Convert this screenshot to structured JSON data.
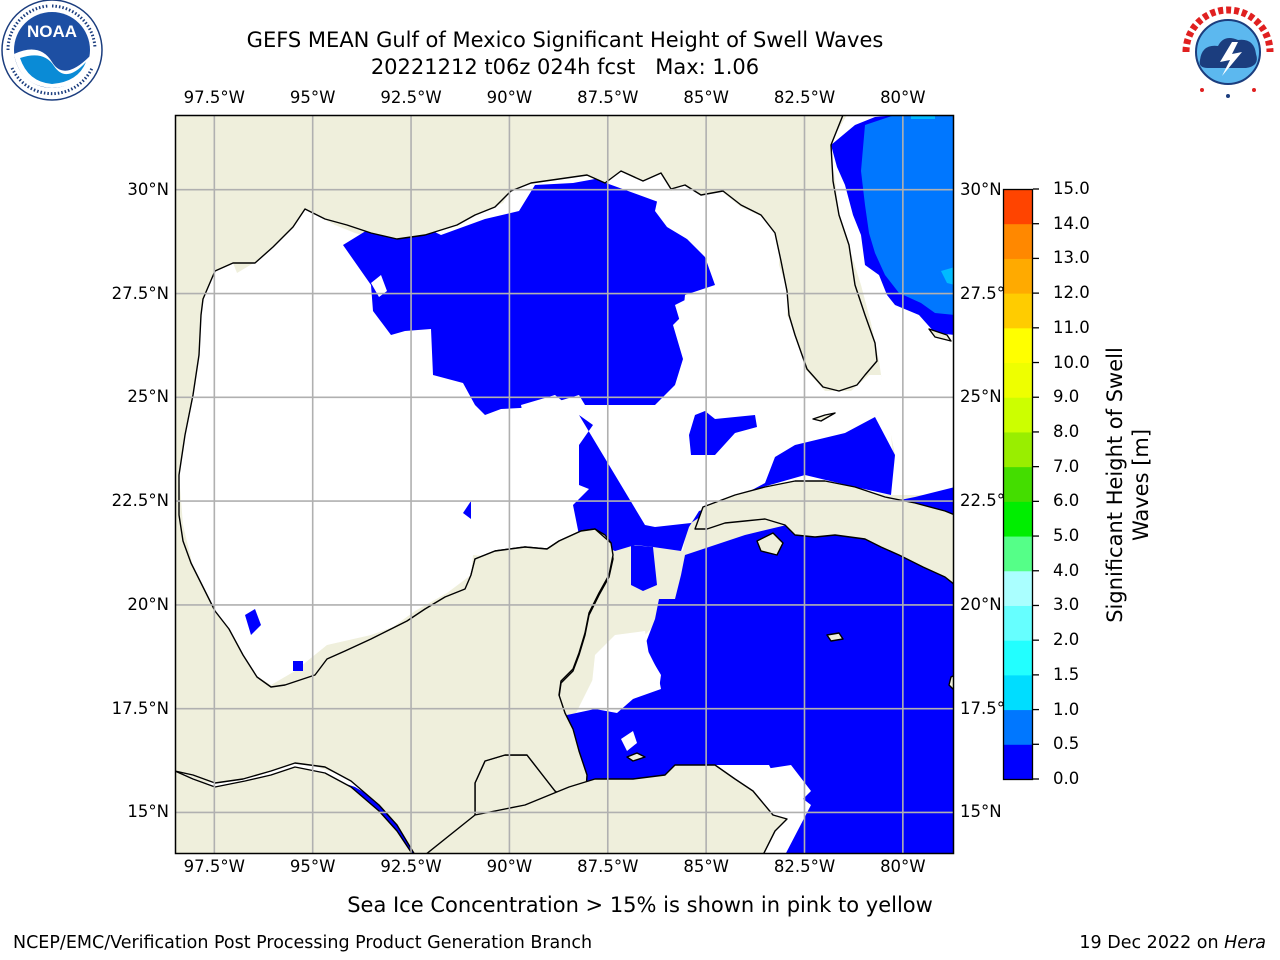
{
  "title": {
    "line1": "GEFS MEAN Gulf of Mexico Significant Height of Swell Waves",
    "line2": "20221212 t06z 024h fcst   Max: 1.06"
  },
  "logos": {
    "left": {
      "icon": "noaa-logo-icon",
      "text": "NOAA",
      "ring": "NATIONAL OCEANIC AND ATMOSPHERIC ADMINISTRATION · U.S. DEPARTMENT OF COMMERCE"
    },
    "right": {
      "icon": "nws-logo-icon",
      "ring": "NATIONAL WEATHER SERVICE"
    }
  },
  "map": {
    "lon_range": [
      -98.5,
      -78.7
    ],
    "lat_range": [
      14.0,
      31.8
    ],
    "colors": {
      "land": "#efefdc",
      "water_zero": "#ffffff",
      "swell_low": "#0000ff",
      "swell_mid": "#0077ff",
      "swell_high": "#00bbff",
      "coast": "#000000",
      "grid": "#b0b0b0"
    },
    "lon_ticks": [
      {
        "value": -97.5,
        "label": "97.5°W"
      },
      {
        "value": -95.0,
        "label": "95°W"
      },
      {
        "value": -92.5,
        "label": "92.5°W"
      },
      {
        "value": -90.0,
        "label": "90°W"
      },
      {
        "value": -87.5,
        "label": "87.5°W"
      },
      {
        "value": -85.0,
        "label": "85°W"
      },
      {
        "value": -82.5,
        "label": "82.5°W"
      },
      {
        "value": -80.0,
        "label": "80°W"
      }
    ],
    "lat_ticks": [
      {
        "value": 30.0,
        "label": "30°N"
      },
      {
        "value": 27.5,
        "label": "27.5°N"
      },
      {
        "value": 25.0,
        "label": "25°N"
      },
      {
        "value": 22.5,
        "label": "22.5°N"
      },
      {
        "value": 20.0,
        "label": "20°N"
      },
      {
        "value": 17.5,
        "label": "17.5°N"
      },
      {
        "value": 15.0,
        "label": "15°N"
      }
    ]
  },
  "colorbar": {
    "label_line1": "Significant Height of Swell",
    "label_line2": "Waves [m]",
    "ticks": [
      "0.0",
      "0.5",
      "1.0",
      "1.5",
      "2.0",
      "3.0",
      "4.0",
      "5.0",
      "6.0",
      "7.0",
      "8.0",
      "9.0",
      "10.0",
      "11.0",
      "12.0",
      "13.0",
      "14.0",
      "15.0"
    ],
    "colors": [
      "#0000ff",
      "#0077ff",
      "#00ddff",
      "#22ffff",
      "#66ffff",
      "#aaffff",
      "#55ff88",
      "#00ee00",
      "#44dd00",
      "#99ee00",
      "#ccff00",
      "#eeff00",
      "#ffff00",
      "#ffcc00",
      "#ffaa00",
      "#ff8800",
      "#ff4400",
      "#ff1100"
    ]
  },
  "caption": "Sea Ice Concentration > 15% is shown in pink to yellow",
  "credit_left": "NCEP/EMC/Verification Post Processing Product Generation Branch",
  "credit_right": {
    "date": "19 Dec 2022 on ",
    "host": "Hera"
  }
}
